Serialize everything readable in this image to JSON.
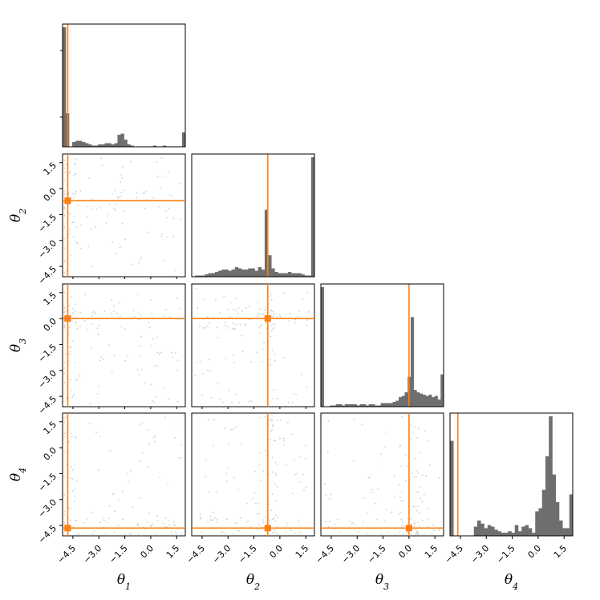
{
  "chart_data": {
    "type": "corner",
    "params": [
      "θ1",
      "θ2",
      "θ3",
      "θ4"
    ],
    "tick_values": [
      -4.5,
      -3.0,
      -1.5,
      0.0,
      1.5
    ],
    "tick_labels": [
      "−4.5",
      "−3.0",
      "−1.5",
      "0.0",
      "1.5"
    ],
    "range": [
      -5.1,
      2.0
    ],
    "truth": [
      -4.8,
      -0.7,
      0.0,
      -4.65
    ],
    "colors": {
      "hist": "#6e6e6e",
      "truth": "#ff7f0e",
      "samples": "#cfcfcf"
    },
    "histograms": [
      {
        "param": "θ1",
        "counts": [
          100,
          28,
          0,
          4,
          5,
          5,
          4,
          3,
          2,
          1,
          1,
          2,
          2,
          3,
          3,
          2,
          3,
          10,
          11,
          6,
          2,
          1,
          0,
          0,
          0,
          0,
          0,
          0,
          1,
          0,
          0,
          1,
          0,
          0,
          0,
          0,
          0,
          12
        ]
      },
      {
        "param": "θ2",
        "counts": [
          0,
          1,
          1,
          1,
          2,
          3,
          3,
          4,
          5,
          6,
          6,
          5,
          6,
          8,
          7,
          6,
          6,
          7,
          7,
          5,
          8,
          6,
          56,
          18,
          7,
          4,
          3,
          3,
          3,
          4,
          3,
          3,
          3,
          2,
          1,
          1,
          100
        ]
      },
      {
        "param": "θ3",
        "counts": [
          100,
          0,
          0,
          1,
          1,
          2,
          2,
          1,
          2,
          2,
          2,
          2,
          1,
          2,
          2,
          1,
          2,
          2,
          1,
          1,
          3,
          3,
          3,
          3,
          4,
          5,
          8,
          9,
          12,
          25,
          75,
          14,
          12,
          11,
          10,
          9,
          10,
          8,
          9,
          6,
          27
        ]
      },
      {
        "param": "θ4",
        "counts": [
          62,
          0,
          0,
          0,
          0,
          0,
          0,
          6,
          10,
          8,
          5,
          7,
          6,
          4,
          3,
          2,
          2,
          3,
          2,
          7,
          3,
          6,
          7,
          5,
          2,
          16,
          18,
          30,
          52,
          78,
          40,
          22,
          10,
          5,
          5,
          27
        ]
      }
    ]
  }
}
